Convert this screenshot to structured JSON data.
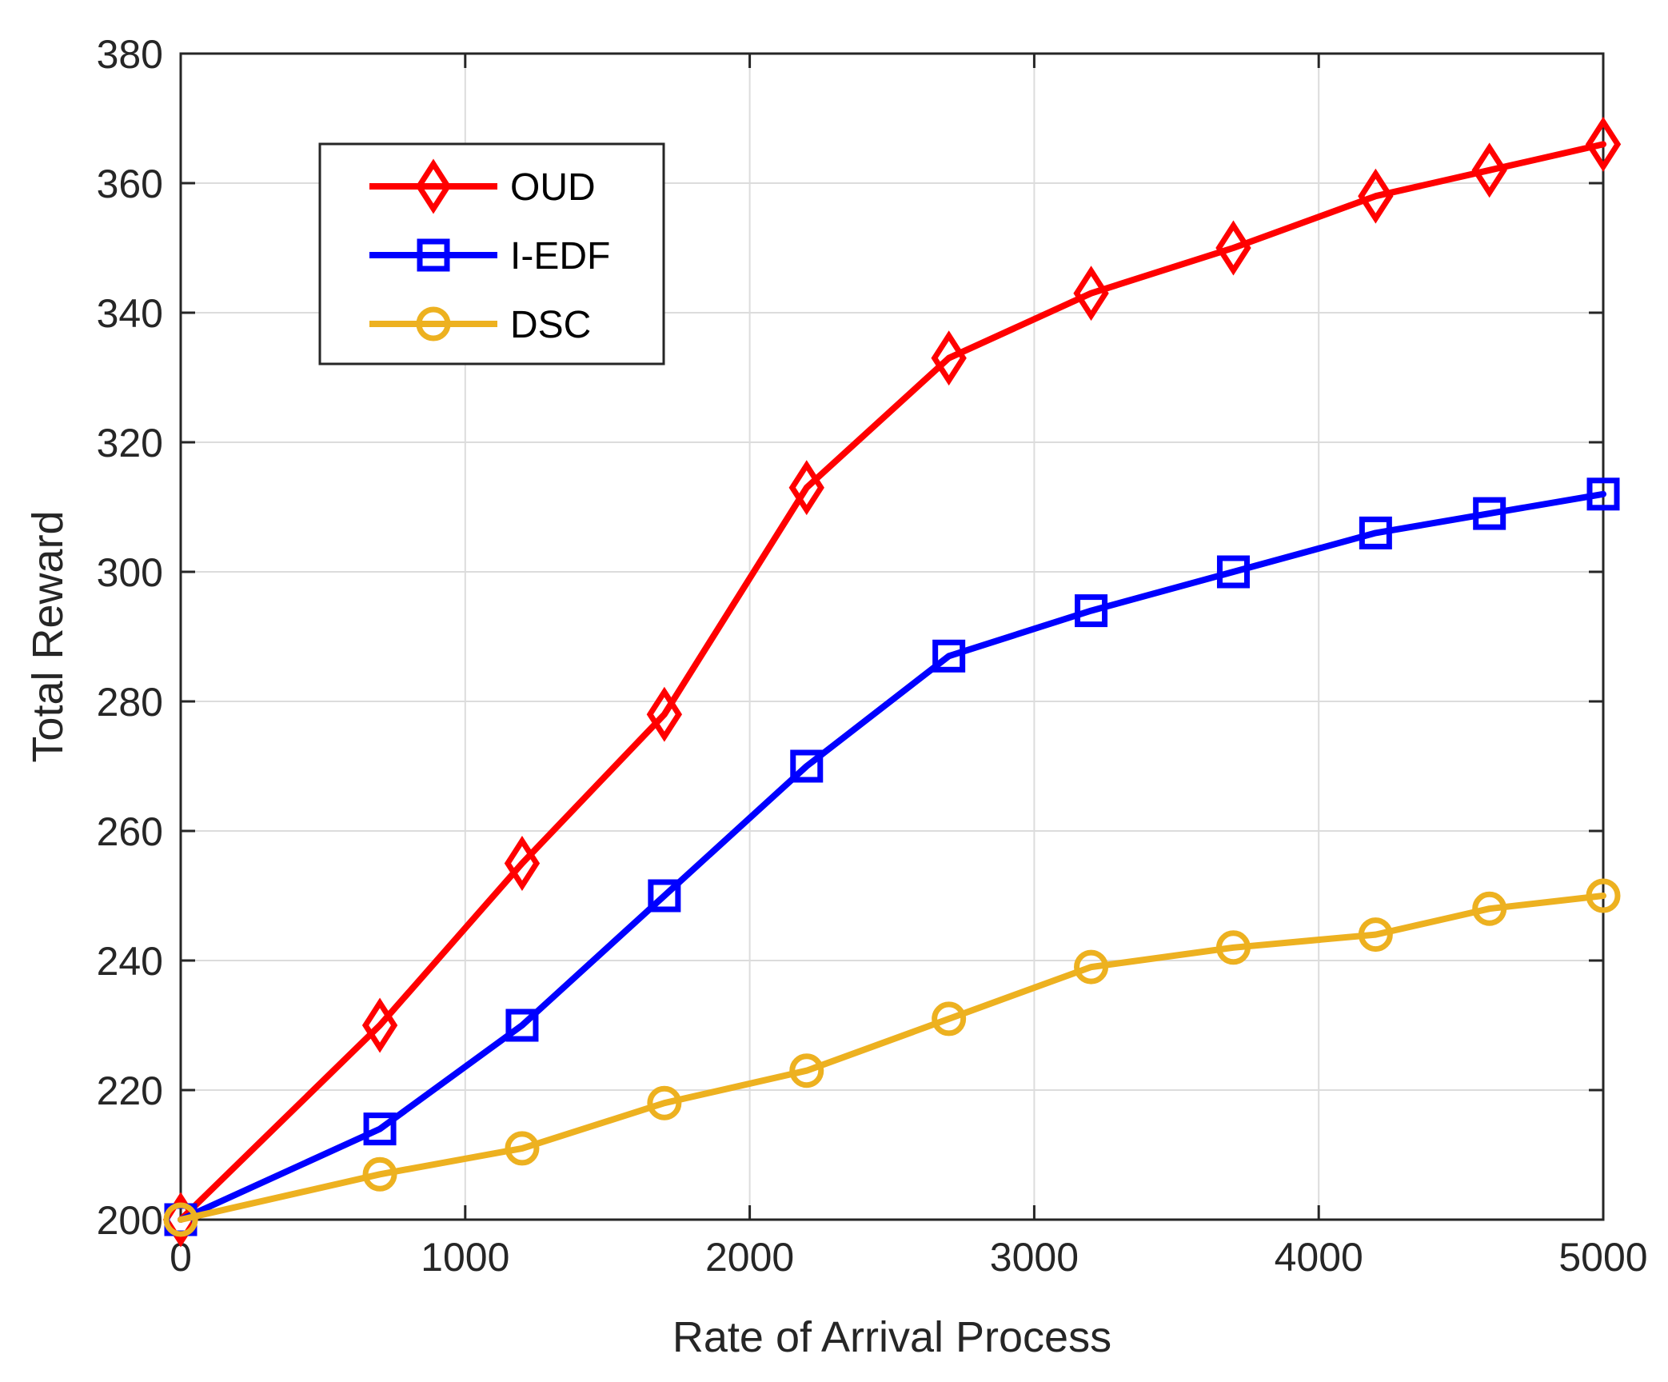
{
  "chart_data": {
    "type": "line",
    "title": "",
    "xlabel": "Rate of Arrival Process",
    "ylabel": "Total Reward",
    "xlim": [
      0,
      5000
    ],
    "ylim": [
      200,
      380
    ],
    "xticks": [
      0,
      1000,
      2000,
      3000,
      4000,
      5000
    ],
    "yticks": [
      200,
      220,
      240,
      260,
      280,
      300,
      320,
      340,
      360,
      380
    ],
    "grid": true,
    "legend_position": "top-left",
    "x": [
      0,
      700,
      1200,
      1700,
      2200,
      2700,
      3200,
      3700,
      4200,
      4600,
      5000
    ],
    "series": [
      {
        "name": "OUD",
        "color": "#ff0000",
        "marker": "diamond",
        "values": [
          200,
          230,
          255,
          278,
          313,
          333,
          343,
          350,
          358,
          362,
          366
        ]
      },
      {
        "name": "I-EDF",
        "color": "#0000ff",
        "marker": "square",
        "values": [
          200,
          214,
          230,
          250,
          270,
          287,
          294,
          300,
          306,
          309,
          312
        ]
      },
      {
        "name": "DSC",
        "color": "#edb120",
        "marker": "circle",
        "values": [
          200,
          207,
          211,
          218,
          223,
          231,
          239,
          242,
          244,
          248,
          250
        ]
      }
    ]
  }
}
